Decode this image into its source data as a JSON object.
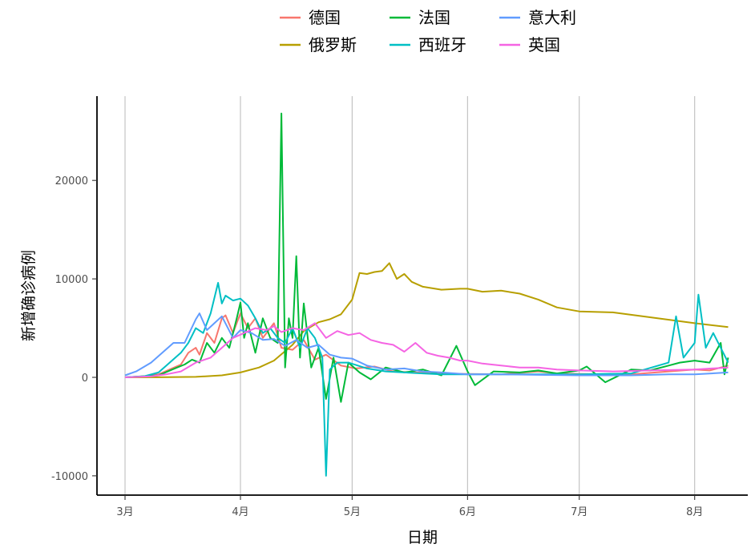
{
  "chart_data": {
    "type": "line",
    "xlabel": "日期",
    "ylabel": "新增确诊病例",
    "x_ticks": [
      "3月",
      "4月",
      "5月",
      "6月",
      "7月",
      "8月"
    ],
    "x_tick_dates": [
      "2020-03-01",
      "2020-04-01",
      "2020-05-01",
      "2020-06-01",
      "2020-07-01",
      "2020-08-01"
    ],
    "y_ticks": [
      -10000,
      0,
      10000,
      20000
    ],
    "x_range": [
      "2020-02-25",
      "2020-08-13"
    ],
    "ylim": [
      -12000,
      28500
    ],
    "grid": "vertical major lines only",
    "legend_position": "top",
    "series": [
      {
        "name": "德国",
        "color": "#F8766D",
        "points": [
          [
            "2020-03-01",
            0
          ],
          [
            "2020-03-06",
            100
          ],
          [
            "2020-03-10",
            300
          ],
          [
            "2020-03-13",
            800
          ],
          [
            "2020-03-16",
            1300
          ],
          [
            "2020-03-18",
            2500
          ],
          [
            "2020-03-20",
            3000
          ],
          [
            "2020-03-21",
            2300
          ],
          [
            "2020-03-23",
            4500
          ],
          [
            "2020-03-25",
            3500
          ],
          [
            "2020-03-27",
            6000
          ],
          [
            "2020-03-28",
            6300
          ],
          [
            "2020-03-30",
            4500
          ],
          [
            "2020-04-01",
            6500
          ],
          [
            "2020-04-03",
            5000
          ],
          [
            "2020-04-05",
            6000
          ],
          [
            "2020-04-07",
            4000
          ],
          [
            "2020-04-10",
            5500
          ],
          [
            "2020-04-12",
            3000
          ],
          [
            "2020-04-15",
            2800
          ],
          [
            "2020-04-18",
            3800
          ],
          [
            "2020-04-21",
            1800
          ],
          [
            "2020-04-24",
            2300
          ],
          [
            "2020-04-28",
            1200
          ],
          [
            "2020-05-02",
            900
          ],
          [
            "2020-05-07",
            1100
          ],
          [
            "2020-05-12",
            600
          ],
          [
            "2020-05-18",
            500
          ],
          [
            "2020-05-25",
            400
          ],
          [
            "2020-06-01",
            350
          ],
          [
            "2020-06-10",
            300
          ],
          [
            "2020-06-20",
            600
          ],
          [
            "2020-06-25",
            400
          ],
          [
            "2020-07-01",
            350
          ],
          [
            "2020-07-15",
            300
          ],
          [
            "2020-07-25",
            600
          ],
          [
            "2020-08-01",
            800
          ],
          [
            "2020-08-05",
            700
          ],
          [
            "2020-08-10",
            1200
          ]
        ]
      },
      {
        "name": "俄罗斯",
        "color": "#B79F00",
        "points": [
          [
            "2020-03-01",
            0
          ],
          [
            "2020-03-10",
            10
          ],
          [
            "2020-03-20",
            50
          ],
          [
            "2020-03-27",
            200
          ],
          [
            "2020-04-01",
            500
          ],
          [
            "2020-04-06",
            1000
          ],
          [
            "2020-04-10",
            1700
          ],
          [
            "2020-04-15",
            3300
          ],
          [
            "2020-04-18",
            4700
          ],
          [
            "2020-04-22",
            5600
          ],
          [
            "2020-04-25",
            5900
          ],
          [
            "2020-04-28",
            6400
          ],
          [
            "2020-05-01",
            7900
          ],
          [
            "2020-05-03",
            10600
          ],
          [
            "2020-05-05",
            10500
          ],
          [
            "2020-05-07",
            10700
          ],
          [
            "2020-05-09",
            10800
          ],
          [
            "2020-05-11",
            11600
          ],
          [
            "2020-05-13",
            10000
          ],
          [
            "2020-05-15",
            10500
          ],
          [
            "2020-05-17",
            9700
          ],
          [
            "2020-05-20",
            9200
          ],
          [
            "2020-05-25",
            8900
          ],
          [
            "2020-05-30",
            9000
          ],
          [
            "2020-06-01",
            9000
          ],
          [
            "2020-06-05",
            8700
          ],
          [
            "2020-06-10",
            8800
          ],
          [
            "2020-06-15",
            8500
          ],
          [
            "2020-06-20",
            7900
          ],
          [
            "2020-06-25",
            7100
          ],
          [
            "2020-07-01",
            6700
          ],
          [
            "2020-07-10",
            6600
          ],
          [
            "2020-07-20",
            6100
          ],
          [
            "2020-08-01",
            5500
          ],
          [
            "2020-08-10",
            5100
          ]
        ]
      },
      {
        "name": "法国",
        "color": "#00BA38",
        "points": [
          [
            "2020-03-01",
            0
          ],
          [
            "2020-03-10",
            200
          ],
          [
            "2020-03-15",
            1000
          ],
          [
            "2020-03-17",
            1300
          ],
          [
            "2020-03-19",
            1800
          ],
          [
            "2020-03-21",
            1500
          ],
          [
            "2020-03-23",
            3500
          ],
          [
            "2020-03-25",
            2500
          ],
          [
            "2020-03-27",
            4000
          ],
          [
            "2020-03-29",
            3000
          ],
          [
            "2020-03-31",
            6000
          ],
          [
            "2020-04-01",
            7600
          ],
          [
            "2020-04-02",
            4000
          ],
          [
            "2020-04-03",
            5500
          ],
          [
            "2020-04-05",
            2500
          ],
          [
            "2020-04-07",
            6000
          ],
          [
            "2020-04-09",
            4000
          ],
          [
            "2020-04-11",
            3500
          ],
          [
            "2020-04-12",
            26800
          ],
          [
            "2020-04-13",
            1000
          ],
          [
            "2020-04-14",
            6000
          ],
          [
            "2020-04-15",
            4000
          ],
          [
            "2020-04-16",
            12300
          ],
          [
            "2020-04-17",
            2000
          ],
          [
            "2020-04-18",
            7500
          ],
          [
            "2020-04-20",
            1000
          ],
          [
            "2020-04-22",
            3000
          ],
          [
            "2020-04-24",
            -2200
          ],
          [
            "2020-04-26",
            2000
          ],
          [
            "2020-04-28",
            -2500
          ],
          [
            "2020-04-30",
            1500
          ],
          [
            "2020-05-03",
            500
          ],
          [
            "2020-05-06",
            -200
          ],
          [
            "2020-05-10",
            1000
          ],
          [
            "2020-05-15",
            500
          ],
          [
            "2020-05-20",
            800
          ],
          [
            "2020-05-25",
            200
          ],
          [
            "2020-05-29",
            3200
          ],
          [
            "2020-06-01",
            600
          ],
          [
            "2020-06-03",
            -800
          ],
          [
            "2020-06-08",
            600
          ],
          [
            "2020-06-15",
            500
          ],
          [
            "2020-06-20",
            700
          ],
          [
            "2020-06-25",
            400
          ],
          [
            "2020-07-01",
            700
          ],
          [
            "2020-07-03",
            1100
          ],
          [
            "2020-07-08",
            -500
          ],
          [
            "2020-07-15",
            800
          ],
          [
            "2020-07-20",
            700
          ],
          [
            "2020-07-25",
            1200
          ],
          [
            "2020-07-28",
            1500
          ],
          [
            "2020-08-01",
            1700
          ],
          [
            "2020-08-05",
            1500
          ],
          [
            "2020-08-08",
            3500
          ],
          [
            "2020-08-09",
            300
          ],
          [
            "2020-08-10",
            2000
          ]
        ]
      },
      {
        "name": "西班牙",
        "color": "#00BFC4",
        "points": [
          [
            "2020-03-01",
            0
          ],
          [
            "2020-03-06",
            100
          ],
          [
            "2020-03-10",
            500
          ],
          [
            "2020-03-13",
            1500
          ],
          [
            "2020-03-16",
            2500
          ],
          [
            "2020-03-18",
            3500
          ],
          [
            "2020-03-20",
            5000
          ],
          [
            "2020-03-22",
            4500
          ],
          [
            "2020-03-24",
            6500
          ],
          [
            "2020-03-26",
            9600
          ],
          [
            "2020-03-27",
            7500
          ],
          [
            "2020-03-28",
            8300
          ],
          [
            "2020-03-30",
            7800
          ],
          [
            "2020-04-01",
            8000
          ],
          [
            "2020-04-03",
            7300
          ],
          [
            "2020-04-05",
            6000
          ],
          [
            "2020-04-07",
            4500
          ],
          [
            "2020-04-09",
            5000
          ],
          [
            "2020-04-11",
            4000
          ],
          [
            "2020-04-13",
            3500
          ],
          [
            "2020-04-15",
            5000
          ],
          [
            "2020-04-17",
            3000
          ],
          [
            "2020-04-19",
            5000
          ],
          [
            "2020-04-21",
            4000
          ],
          [
            "2020-04-23",
            2000
          ],
          [
            "2020-04-24",
            -10000
          ],
          [
            "2020-04-25",
            800
          ],
          [
            "2020-04-27",
            1500
          ],
          [
            "2020-04-30",
            1500
          ],
          [
            "2020-05-05",
            900
          ],
          [
            "2020-05-10",
            600
          ],
          [
            "2020-05-15",
            500
          ],
          [
            "2020-05-20",
            400
          ],
          [
            "2020-05-25",
            300
          ],
          [
            "2020-06-01",
            300
          ],
          [
            "2020-06-15",
            300
          ],
          [
            "2020-07-01",
            300
          ],
          [
            "2020-07-15",
            400
          ],
          [
            "2020-07-25",
            1500
          ],
          [
            "2020-07-27",
            6200
          ],
          [
            "2020-07-29",
            2000
          ],
          [
            "2020-08-01",
            3500
          ],
          [
            "2020-08-02",
            8400
          ],
          [
            "2020-08-04",
            3000
          ],
          [
            "2020-08-06",
            4500
          ],
          [
            "2020-08-08",
            3000
          ],
          [
            "2020-08-10",
            1500
          ]
        ]
      },
      {
        "name": "意大利",
        "color": "#619CFF",
        "points": [
          [
            "2020-03-01",
            200
          ],
          [
            "2020-03-04",
            600
          ],
          [
            "2020-03-08",
            1500
          ],
          [
            "2020-03-11",
            2500
          ],
          [
            "2020-03-14",
            3500
          ],
          [
            "2020-03-17",
            3500
          ],
          [
            "2020-03-20",
            5900
          ],
          [
            "2020-03-21",
            6500
          ],
          [
            "2020-03-23",
            4800
          ],
          [
            "2020-03-25",
            5500
          ],
          [
            "2020-03-27",
            6200
          ],
          [
            "2020-03-30",
            4000
          ],
          [
            "2020-04-01",
            4800
          ],
          [
            "2020-04-04",
            4500
          ],
          [
            "2020-04-07",
            3800
          ],
          [
            "2020-04-10",
            3900
          ],
          [
            "2020-04-13",
            3200
          ],
          [
            "2020-04-16",
            3800
          ],
          [
            "2020-04-19",
            3000
          ],
          [
            "2020-04-22",
            3300
          ],
          [
            "2020-04-25",
            2300
          ],
          [
            "2020-04-28",
            2000
          ],
          [
            "2020-05-01",
            1900
          ],
          [
            "2020-05-05",
            1200
          ],
          [
            "2020-05-10",
            800
          ],
          [
            "2020-05-15",
            900
          ],
          [
            "2020-05-20",
            600
          ],
          [
            "2020-05-25",
            500
          ],
          [
            "2020-06-01",
            300
          ],
          [
            "2020-06-10",
            300
          ],
          [
            "2020-06-20",
            250
          ],
          [
            "2020-07-01",
            200
          ],
          [
            "2020-07-15",
            200
          ],
          [
            "2020-07-25",
            300
          ],
          [
            "2020-08-01",
            300
          ],
          [
            "2020-08-10",
            500
          ]
        ]
      },
      {
        "name": "英国",
        "color": "#F564E3",
        "points": [
          [
            "2020-03-01",
            0
          ],
          [
            "2020-03-08",
            100
          ],
          [
            "2020-03-12",
            300
          ],
          [
            "2020-03-16",
            600
          ],
          [
            "2020-03-20",
            1500
          ],
          [
            "2020-03-24",
            2000
          ],
          [
            "2020-03-27",
            3000
          ],
          [
            "2020-03-30",
            4000
          ],
          [
            "2020-04-02",
            4500
          ],
          [
            "2020-04-05",
            5000
          ],
          [
            "2020-04-08",
            4800
          ],
          [
            "2020-04-10",
            5200
          ],
          [
            "2020-04-12",
            4600
          ],
          [
            "2020-04-15",
            5000
          ],
          [
            "2020-04-18",
            4800
          ],
          [
            "2020-04-21",
            5500
          ],
          [
            "2020-04-24",
            4000
          ],
          [
            "2020-04-27",
            4700
          ],
          [
            "2020-04-30",
            4300
          ],
          [
            "2020-05-03",
            4500
          ],
          [
            "2020-05-06",
            3800
          ],
          [
            "2020-05-09",
            3500
          ],
          [
            "2020-05-12",
            3300
          ],
          [
            "2020-05-15",
            2600
          ],
          [
            "2020-05-18",
            3500
          ],
          [
            "2020-05-21",
            2500
          ],
          [
            "2020-05-24",
            2200
          ],
          [
            "2020-05-27",
            2000
          ],
          [
            "2020-05-30",
            1700
          ],
          [
            "2020-06-01",
            1700
          ],
          [
            "2020-06-05",
            1400
          ],
          [
            "2020-06-10",
            1200
          ],
          [
            "2020-06-15",
            1000
          ],
          [
            "2020-06-20",
            1000
          ],
          [
            "2020-06-25",
            800
          ],
          [
            "2020-07-01",
            700
          ],
          [
            "2020-07-10",
            600
          ],
          [
            "2020-07-20",
            700
          ],
          [
            "2020-08-01",
            800
          ],
          [
            "2020-08-10",
            1000
          ]
        ]
      }
    ]
  }
}
